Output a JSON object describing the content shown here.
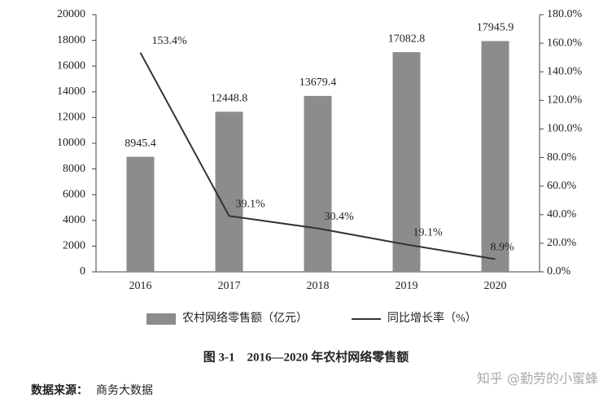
{
  "chart_data": {
    "type": "bar-line",
    "categories": [
      "2016",
      "2017",
      "2018",
      "2019",
      "2020"
    ],
    "series": [
      {
        "name": "农村网络零售额（亿元）",
        "type": "bar",
        "color": "#8c8c8c",
        "values": [
          8945.4,
          12448.8,
          13679.4,
          17082.8,
          17945.9
        ]
      },
      {
        "name": "同比增长率（%）",
        "type": "line",
        "axis": "y2",
        "color": "#333333",
        "values": [
          153.4,
          39.1,
          30.4,
          19.1,
          8.9
        ],
        "value_labels": [
          "153.4%",
          "39.1%",
          "30.4%",
          "19.1%",
          "8.9%"
        ]
      }
    ],
    "ylim": [
      0,
      20000
    ],
    "yticks": [
      0,
      2000,
      4000,
      6000,
      8000,
      10000,
      12000,
      14000,
      16000,
      18000,
      20000
    ],
    "y2lim": [
      0,
      180
    ],
    "y2ticks": [
      {
        "value": 0,
        "label": "0.0%"
      },
      {
        "value": 20,
        "label": "20.0%"
      },
      {
        "value": 40,
        "label": "40.0%"
      },
      {
        "value": 60,
        "label": "60.0%"
      },
      {
        "value": 80,
        "label": "80.0%"
      },
      {
        "value": 100,
        "label": "100.0%"
      },
      {
        "value": 120,
        "label": "120.0%"
      },
      {
        "value": 140,
        "label": "140.0%"
      },
      {
        "value": 160,
        "label": "160.0%"
      },
      {
        "value": 180,
        "label": "180.0%"
      }
    ],
    "legend": "bottom",
    "grid": false
  },
  "caption": "图 3-1　2016—2020 年农村网络零售额",
  "source_label": "数据来源：",
  "source_text": "商务大数据",
  "watermark": "知乎 @勤劳的小蜜蜂"
}
